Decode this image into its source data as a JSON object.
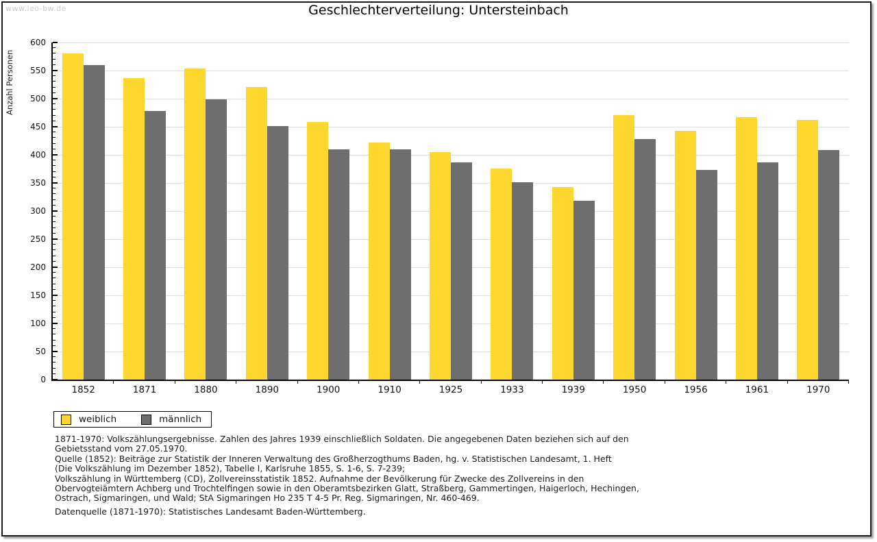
{
  "watermark": "www.leo-bw.de",
  "chart_data": {
    "type": "bar",
    "title": "Geschlechterverteilung: Untersteinbach",
    "xlabel": "",
    "ylabel": "Anzahl Personen",
    "ylim": [
      0,
      600
    ],
    "ytick_step": 50,
    "y_minor_step": 10,
    "grid": true,
    "legend_position": "bottom-left",
    "categories": [
      "1852",
      "1871",
      "1880",
      "1890",
      "1900",
      "1910",
      "1925",
      "1933",
      "1939",
      "1950",
      "1956",
      "1961",
      "1970"
    ],
    "series": [
      {
        "name": "weiblich",
        "color": "#FDD62E",
        "values": [
          580,
          537,
          554,
          521,
          458,
          422,
          405,
          376,
          343,
          471,
          443,
          467,
          462
        ]
      },
      {
        "name": "männlich",
        "color": "#6E6E6E",
        "values": [
          560,
          478,
          499,
          451,
          410,
          410,
          387,
          351,
          318,
          428,
          373,
          387,
          408
        ]
      }
    ]
  },
  "footnotes": [
    "1871-1970: Volkszählungsergebnisse. Zahlen des Jahres 1939 einschließlich Soldaten. Die angegebenen Daten beziehen sich auf den",
    "Gebietsstand vom 27.05.1970.",
    "Quelle (1852): Beiträge zur Statistik der Inneren Verwaltung des Großherzogthums Baden, hg. v. Statistischen Landesamt, 1. Heft",
    "(Die Volkszählung im Dezember 1852), Tabelle I, Karlsruhe 1855, S. 1-6, S. 7-239;",
    "Volkszählung in Württemberg (CD), Zollvereinsstatistik 1852. Aufnahme der Bevölkerung für Zwecke des Zollvereins in den",
    "Obervogteiämtern Achberg und Trochtelfingen sowie in den Oberamtsbezirken Glatt, Straßberg, Gammertingen, Haigerloch, Hechingen,",
    "Ostrach, Sigmaringen, und Wald; StA Sigmaringen Ho 235 T 4-5 Pr. Reg. Sigmaringen, Nr. 460-469."
  ],
  "datasource": "Datenquelle (1871-1970): Statistisches Landesamt Baden-Württemberg."
}
